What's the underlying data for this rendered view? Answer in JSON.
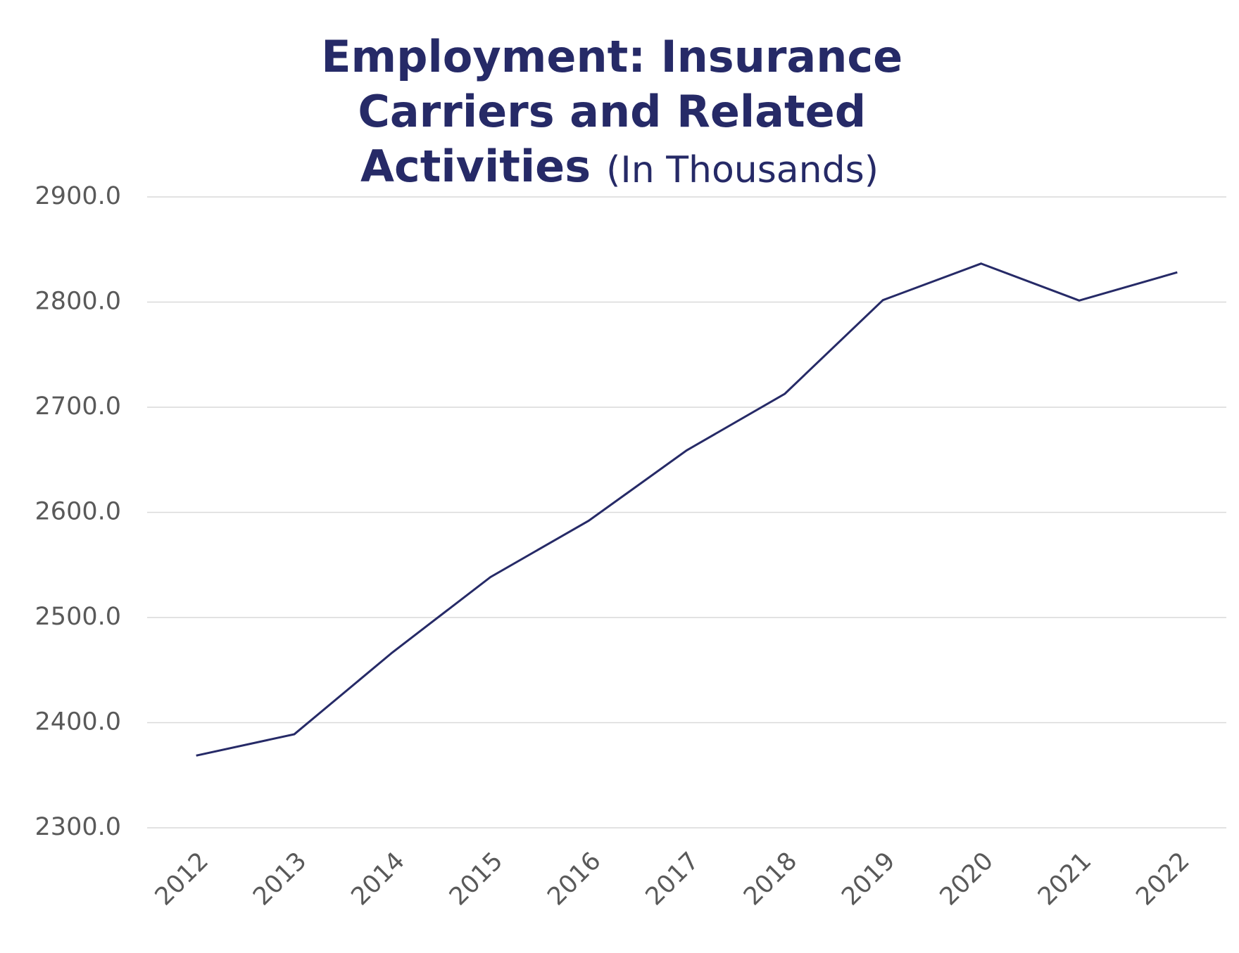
{
  "chart_data": {
    "type": "line",
    "title": "Employment: Insurance Carriers and Related Activities",
    "subtitle": "(In Thousands)",
    "categories": [
      "2012",
      "2013",
      "2014",
      "2015",
      "2016",
      "2017",
      "2018",
      "2019",
      "2020",
      "2021",
      "2022"
    ],
    "values": [
      2368.7,
      2389,
      2466.8,
      2538.5,
      2592,
      2659,
      2712.8,
      2801.9,
      2836.6,
      2801.5,
      2828.3
    ],
    "color": "#262a67",
    "ylim": [
      2300,
      2900
    ],
    "yticks": [
      {
        "value": 2300,
        "label": "2300.0"
      },
      {
        "value": 2400,
        "label": "2400.0"
      },
      {
        "value": 2500,
        "label": "2500.0"
      },
      {
        "value": 2600,
        "label": "2600.0"
      },
      {
        "value": 2700,
        "label": "2700.0"
      },
      {
        "value": 2800,
        "label": "2800.0"
      },
      {
        "value": 2900,
        "label": "2900.0"
      }
    ],
    "grid": true
  }
}
